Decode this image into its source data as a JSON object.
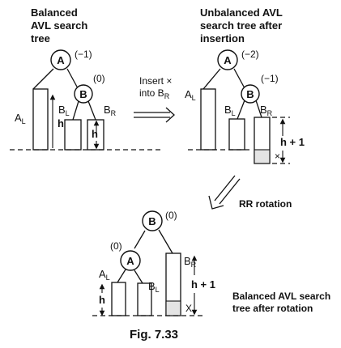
{
  "captions": {
    "panel1": [
      "Balanced",
      "AVL search",
      "tree"
    ],
    "panel2": [
      "Unbalanced AVL",
      "search tree after",
      "insertion"
    ],
    "panel3": [
      "Balanced AVL search",
      "tree after rotation"
    ],
    "insert_line1": "Insert ×",
    "insert_line2_prefix": "into B",
    "insert_line2_sub": "R",
    "rr_rotation": "RR rotation",
    "figure": "Fig. 7.33"
  },
  "nodes": {
    "a": "A",
    "b": "B"
  },
  "subtrees": {
    "al": {
      "main": "A",
      "sub": "L"
    },
    "bl": {
      "main": "B",
      "sub": "L"
    },
    "br": {
      "main": "B",
      "sub": "R"
    }
  },
  "balance": {
    "p1_a": "(−1)",
    "p1_b": "(0)",
    "p2_a": "(−2)",
    "p2_b": "(−1)",
    "p3_b": "(0)",
    "p3_a": "(0)"
  },
  "heights": {
    "h": "h",
    "h_plus_1": "h + 1"
  },
  "inserted": {
    "p2": "×",
    "p3": "X"
  }
}
